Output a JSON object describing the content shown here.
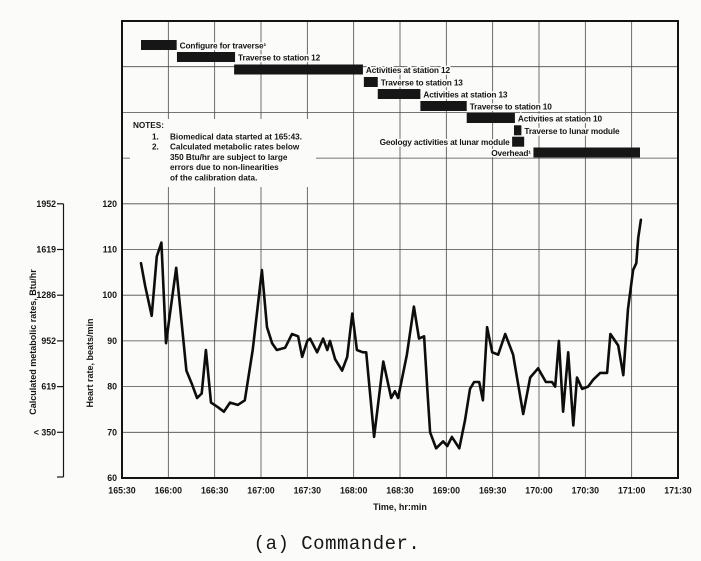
{
  "scan_bg": "#fbfbf9",
  "ink": "#161616",
  "grid_color": "#4a4a4a",
  "caption": "(a)  Commander.",
  "notes": {
    "heading": "NOTES:",
    "items": [
      {
        "num": "1.",
        "lines": [
          "Biomedical data started at 165:43."
        ]
      },
      {
        "num": "2.",
        "lines": [
          "Calculated metabolic rates below",
          "350 Btu/hr are subject to large",
          "errors due to non-linearities",
          "of the calibration data."
        ]
      }
    ]
  },
  "chart_data": {
    "type": "line",
    "title": "",
    "xlabel": "Time, hr:min",
    "ylabel_metabolic": "Calculated metabolic rates, Btu/hr",
    "ylabel_heart": "Heart rate, beats/min",
    "x_ticks": [
      "165:30",
      "166:00",
      "166:30",
      "167:00",
      "167:30",
      "168:00",
      "168:30",
      "169:00",
      "169:30",
      "170:00",
      "170:30",
      "171:00",
      "171:30"
    ],
    "x_range_hr": [
      165.5,
      171.5
    ],
    "heart_rate_ticks": [
      120,
      110,
      100,
      90,
      80,
      70,
      60
    ],
    "heart_rate_range": [
      60,
      120
    ],
    "metabolic_ticks": [
      "1952",
      "1619",
      "1286",
      "952",
      "619",
      "< 350"
    ],
    "metabolic_alignment_bpm": [
      120,
      110,
      100,
      90,
      80,
      70
    ],
    "grid": true,
    "legend": "none",
    "series": [
      {
        "name": "Heart rate",
        "points": [
          [
            165.705,
            107
          ],
          [
            165.75,
            102
          ],
          [
            165.82,
            95.5
          ],
          [
            165.875,
            108.5
          ],
          [
            165.925,
            111.5
          ],
          [
            165.975,
            89.5
          ],
          [
            166.085,
            106
          ],
          [
            166.195,
            83.5
          ],
          [
            166.255,
            80.5
          ],
          [
            166.31,
            77.5
          ],
          [
            166.36,
            78.5
          ],
          [
            166.405,
            88
          ],
          [
            166.46,
            76.5
          ],
          [
            166.535,
            75.5
          ],
          [
            166.6,
            74.5
          ],
          [
            166.665,
            76.5
          ],
          [
            166.75,
            76
          ],
          [
            166.825,
            77
          ],
          [
            166.91,
            88
          ],
          [
            167.01,
            105.5
          ],
          [
            167.065,
            93
          ],
          [
            167.12,
            89.5
          ],
          [
            167.17,
            88
          ],
          [
            167.26,
            88.5
          ],
          [
            167.335,
            91.5
          ],
          [
            167.4,
            91
          ],
          [
            167.445,
            86.5
          ],
          [
            167.5,
            90
          ],
          [
            167.53,
            90.5
          ],
          [
            167.605,
            87.5
          ],
          [
            167.67,
            90.5
          ],
          [
            167.715,
            88
          ],
          [
            167.745,
            90
          ],
          [
            167.8,
            86
          ],
          [
            167.875,
            83.5
          ],
          [
            167.93,
            86.5
          ],
          [
            167.985,
            96
          ],
          [
            168.035,
            88
          ],
          [
            168.1,
            87.5
          ],
          [
            168.135,
            87.5
          ],
          [
            168.2,
            73.5
          ],
          [
            168.22,
            69
          ],
          [
            168.32,
            85.5
          ],
          [
            168.405,
            77.5
          ],
          [
            168.445,
            79
          ],
          [
            168.48,
            77.5
          ],
          [
            168.575,
            87
          ],
          [
            168.65,
            97.5
          ],
          [
            168.705,
            90.5
          ],
          [
            168.76,
            91
          ],
          [
            168.795,
            79.5
          ],
          [
            168.825,
            70
          ],
          [
            168.89,
            66.5
          ],
          [
            168.965,
            68
          ],
          [
            169.01,
            67
          ],
          [
            169.06,
            69
          ],
          [
            169.14,
            66.5
          ],
          [
            169.2,
            72.5
          ],
          [
            169.255,
            79.5
          ],
          [
            169.3,
            81
          ],
          [
            169.355,
            81
          ],
          [
            169.395,
            77
          ],
          [
            169.44,
            93
          ],
          [
            169.495,
            87.5
          ],
          [
            169.56,
            87
          ],
          [
            169.635,
            91.5
          ],
          [
            169.72,
            87
          ],
          [
            169.83,
            74
          ],
          [
            169.905,
            82
          ],
          [
            169.99,
            84
          ],
          [
            170.075,
            81
          ],
          [
            170.14,
            81
          ],
          [
            170.175,
            80
          ],
          [
            170.215,
            90
          ],
          [
            170.26,
            74.5
          ],
          [
            170.315,
            87.5
          ],
          [
            170.37,
            71.5
          ],
          [
            170.41,
            82
          ],
          [
            170.465,
            79.5
          ],
          [
            170.53,
            80
          ],
          [
            170.585,
            81.5
          ],
          [
            170.66,
            83
          ],
          [
            170.735,
            83
          ],
          [
            170.77,
            91.5
          ],
          [
            170.855,
            89
          ],
          [
            170.91,
            82.5
          ],
          [
            170.96,
            97
          ],
          [
            171.015,
            105.5
          ],
          [
            171.05,
            107
          ],
          [
            171.07,
            112.5
          ],
          [
            171.1,
            116.5
          ]
        ]
      }
    ],
    "activities": [
      {
        "label": "Configure for traverse¹",
        "start": 165.705,
        "end": 166.09,
        "row": 0,
        "side": "right"
      },
      {
        "label": "Traverse to station 12",
        "start": 166.093,
        "end": 166.72,
        "row": 1,
        "side": "right"
      },
      {
        "label": "Activities at station 12",
        "start": 166.71,
        "end": 168.1,
        "row": 2,
        "side": "right"
      },
      {
        "label": "Traverse to station 13",
        "start": 168.11,
        "end": 168.26,
        "row": 3,
        "side": "right"
      },
      {
        "label": "Activities at station 13",
        "start": 168.26,
        "end": 168.72,
        "row": 4,
        "side": "right"
      },
      {
        "label": "Traverse to station 10",
        "start": 168.72,
        "end": 169.22,
        "row": 5,
        "side": "right"
      },
      {
        "label": "Activities at station 10",
        "start": 169.22,
        "end": 169.74,
        "row": 6,
        "side": "right"
      },
      {
        "label": "Traverse to lunar module",
        "start": 169.73,
        "end": 169.81,
        "row": 7,
        "side": "right"
      },
      {
        "label": "Geology activities at lunar module",
        "start": 169.71,
        "end": 169.84,
        "row": 8,
        "side": "left"
      },
      {
        "label": "Overhead¹",
        "start": 169.94,
        "end": 171.09,
        "row": 9,
        "side": "left"
      }
    ]
  }
}
